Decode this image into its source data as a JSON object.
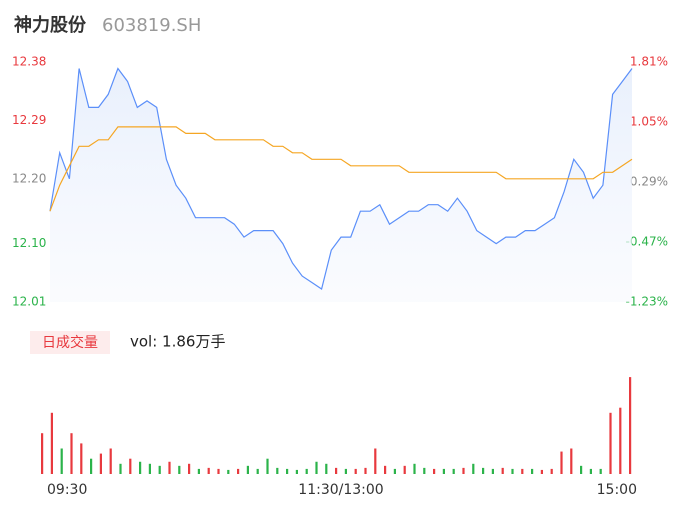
{
  "header": {
    "name": "神力股份",
    "code": "603819.SH"
  },
  "chart_data": {
    "type": "line",
    "categories": [
      "09:30",
      null,
      null,
      null,
      null,
      null,
      null,
      null,
      null,
      null,
      null,
      null,
      null,
      null,
      null,
      null,
      null,
      null,
      null,
      null,
      null,
      null,
      null,
      null,
      null,
      null,
      null,
      null,
      null,
      null,
      "11:30/13:00",
      null,
      null,
      null,
      null,
      null,
      null,
      null,
      null,
      null,
      null,
      null,
      null,
      null,
      null,
      null,
      null,
      null,
      null,
      null,
      null,
      null,
      null,
      null,
      null,
      null,
      null,
      null,
      null,
      null,
      "15:00"
    ],
    "series": [
      {
        "name": "price",
        "color": "#5b8ff9",
        "values": [
          12.15,
          12.24,
          12.2,
          12.37,
          12.31,
          12.31,
          12.33,
          12.37,
          12.35,
          12.31,
          12.32,
          12.31,
          12.23,
          12.19,
          12.17,
          12.14,
          12.14,
          12.14,
          12.14,
          12.13,
          12.11,
          12.12,
          12.12,
          12.12,
          12.1,
          12.07,
          12.05,
          12.04,
          12.03,
          12.09,
          12.11,
          12.11,
          12.15,
          12.15,
          12.16,
          12.13,
          12.14,
          12.15,
          12.15,
          12.16,
          12.16,
          12.15,
          12.17,
          12.15,
          12.12,
          12.11,
          12.1,
          12.11,
          12.11,
          12.12,
          12.12,
          12.13,
          12.14,
          12.18,
          12.23,
          12.21,
          12.17,
          12.19,
          12.33,
          12.35,
          12.37
        ]
      },
      {
        "name": "average",
        "color": "#f5a623",
        "values": [
          12.15,
          12.19,
          12.22,
          12.25,
          12.25,
          12.26,
          12.26,
          12.28,
          12.28,
          12.28,
          12.28,
          12.28,
          12.28,
          12.28,
          12.27,
          12.27,
          12.27,
          12.26,
          12.26,
          12.26,
          12.26,
          12.26,
          12.26,
          12.25,
          12.25,
          12.24,
          12.24,
          12.23,
          12.23,
          12.23,
          12.23,
          12.22,
          12.22,
          12.22,
          12.22,
          12.22,
          12.22,
          12.21,
          12.21,
          12.21,
          12.21,
          12.21,
          12.21,
          12.21,
          12.21,
          12.21,
          12.21,
          12.2,
          12.2,
          12.2,
          12.2,
          12.2,
          12.2,
          12.2,
          12.2,
          12.2,
          12.2,
          12.21,
          12.21,
          12.22,
          12.23
        ]
      }
    ],
    "ylim": [
      12.01,
      12.38
    ],
    "yticks": [
      {
        "value": 12.38,
        "label": "12.38"
      },
      {
        "value": 12.29,
        "label": "12.29"
      },
      {
        "value": 12.2,
        "label": "12.20"
      },
      {
        "value": 12.1,
        "label": "12.10"
      },
      {
        "value": 12.01,
        "label": "12.01"
      }
    ],
    "y2lim": [
      -1.23,
      1.81
    ],
    "y2ticks": [
      {
        "value": 1.81,
        "label": "1.81%"
      },
      {
        "value": 1.05,
        "label": "1.05%"
      },
      {
        "value": 0.29,
        "label": "0.29%"
      },
      {
        "value": -0.47,
        "label": "-0.47%"
      },
      {
        "value": -1.23,
        "label": "-1.23%"
      }
    ],
    "tick_colors": [
      "#e8393e",
      "#e8393e",
      "#888888",
      "#2bb34a",
      "#2bb34a"
    ]
  },
  "volume": {
    "label": "日成交量",
    "summary": "vol: 1.86万手",
    "ylim": [
      0,
      100
    ],
    "values": [
      40,
      60,
      25,
      40,
      30,
      15,
      20,
      25,
      10,
      15,
      12,
      10,
      8,
      12,
      8,
      10,
      5,
      6,
      5,
      4,
      5,
      8,
      5,
      15,
      6,
      5,
      4,
      5,
      12,
      10,
      6,
      5,
      5,
      6,
      25,
      8,
      5,
      8,
      10,
      6,
      5,
      5,
      5,
      6,
      10,
      6,
      5,
      6,
      5,
      5,
      5,
      4,
      5,
      22,
      25,
      8,
      5,
      5,
      60,
      65,
      95
    ],
    "colors": [
      "#e8393e",
      "#e8393e",
      "#2bb34a",
      "#e8393e",
      "#e8393e",
      "#2bb34a",
      "#e8393e",
      "#e8393e",
      "#2bb34a",
      "#e8393e",
      "#2bb34a",
      "#2bb34a",
      "#2bb34a",
      "#e8393e",
      "#2bb34a",
      "#e8393e",
      "#2bb34a",
      "#e8393e",
      "#e8393e",
      "#2bb34a",
      "#e8393e",
      "#2bb34a",
      "#2bb34a",
      "#2bb34a",
      "#2bb34a",
      "#2bb34a",
      "#2bb34a",
      "#2bb34a",
      "#2bb34a",
      "#2bb34a",
      "#e8393e",
      "#2bb34a",
      "#e8393e",
      "#e8393e",
      "#e8393e",
      "#e8393e",
      "#2bb34a",
      "#e8393e",
      "#2bb34a",
      "#2bb34a",
      "#e8393e",
      "#2bb34a",
      "#2bb34a",
      "#e8393e",
      "#2bb34a",
      "#2bb34a",
      "#2bb34a",
      "#e8393e",
      "#2bb34a",
      "#e8393e",
      "#2bb34a",
      "#e8393e",
      "#e8393e",
      "#e8393e",
      "#e8393e",
      "#2bb34a",
      "#2bb34a",
      "#2bb34a",
      "#e8393e",
      "#e8393e",
      "#e8393e"
    ]
  }
}
